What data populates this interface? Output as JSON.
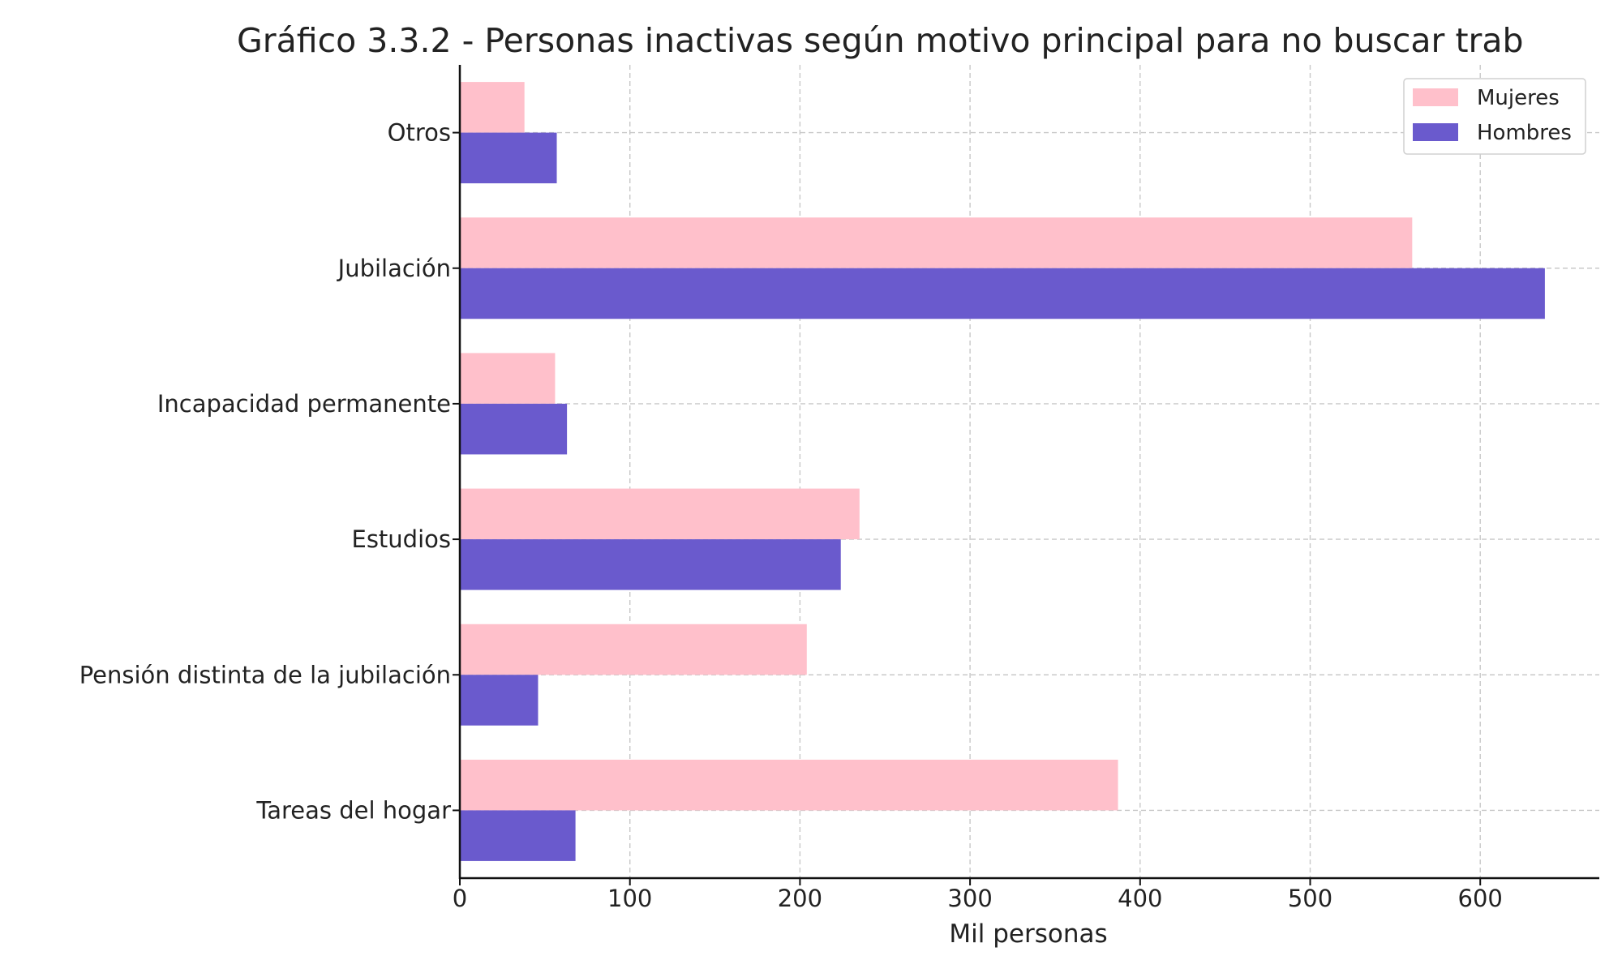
{
  "chart_data": {
    "type": "bar",
    "orientation": "horizontal",
    "title": "Gráfico 3.3.2 - Personas inactivas según motivo principal para no buscar trab",
    "xlabel": "Mil personas",
    "ylabel": "",
    "xlim": [
      0,
      670
    ],
    "xticks": [
      0,
      100,
      200,
      300,
      400,
      500,
      600
    ],
    "grid": true,
    "legend_position": "top-right",
    "categories": [
      "Tareas del hogar",
      "Pensión distinta de la jubilación",
      "Estudios",
      "Incapacidad permanente",
      "Jubilación",
      "Otros"
    ],
    "series": [
      {
        "name": "Mujeres",
        "color": "#ffc0cb",
        "values": [
          387,
          204,
          235,
          56,
          560,
          38
        ]
      },
      {
        "name": "Hombres",
        "color": "#6a5acd",
        "values": [
          68,
          46,
          224,
          63,
          638,
          57
        ]
      }
    ]
  }
}
